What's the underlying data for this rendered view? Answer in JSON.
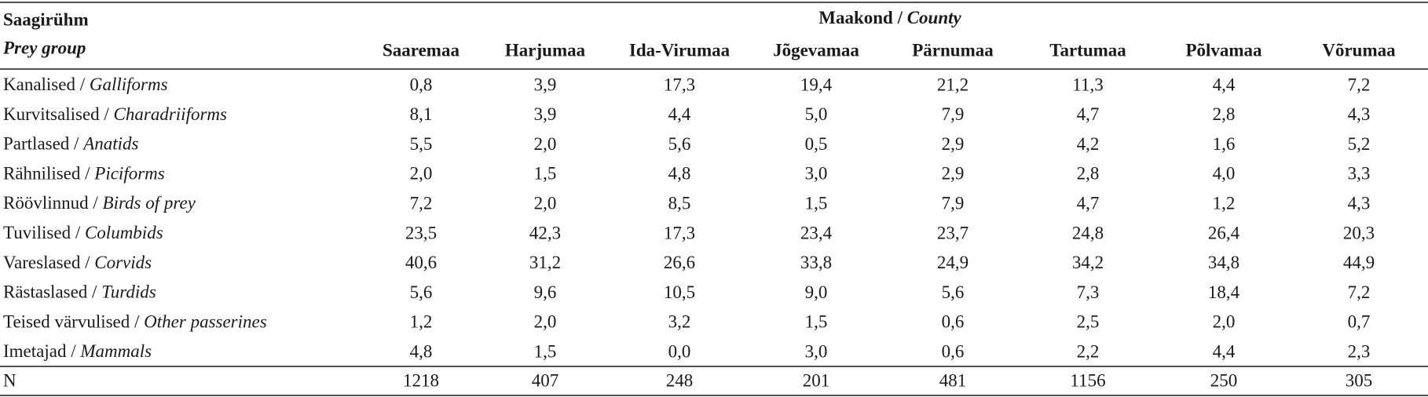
{
  "table": {
    "header": {
      "group": {
        "et": "Saagirühm",
        "en": "Prey group"
      },
      "county": {
        "et": "Maakond / ",
        "en": "County"
      },
      "columns": [
        "Saaremaa",
        "Harjumaa",
        "Ida-Virumaa",
        "Jõgevamaa",
        "Pärnumaa",
        "Tartumaa",
        "Põlvamaa",
        "Võrumaa"
      ]
    },
    "rows": [
      {
        "et": "Kanalised / ",
        "en": "Galliforms",
        "values": [
          "0,8",
          "3,9",
          "17,3",
          "19,4",
          "21,2",
          "11,3",
          "4,4",
          "7,2"
        ]
      },
      {
        "et": "Kurvitsalised / ",
        "en": "Charadriiforms",
        "values": [
          "8,1",
          "3,9",
          "4,4",
          "5,0",
          "7,9",
          "4,7",
          "2,8",
          "4,3"
        ]
      },
      {
        "et": "Partlased / ",
        "en": "Anatids",
        "values": [
          "5,5",
          "2,0",
          "5,6",
          "0,5",
          "2,9",
          "4,2",
          "1,6",
          "5,2"
        ]
      },
      {
        "et": "Rähnilised / ",
        "en": "Piciforms",
        "values": [
          "2,0",
          "1,5",
          "4,8",
          "3,0",
          "2,9",
          "2,8",
          "4,0",
          "3,3"
        ]
      },
      {
        "et": "Röövlinnud / ",
        "en": "Birds of prey",
        "values": [
          "7,2",
          "2,0",
          "8,5",
          "1,5",
          "7,9",
          "4,7",
          "1,2",
          "4,3"
        ]
      },
      {
        "et": "Tuvilised / ",
        "en": "Columbids",
        "values": [
          "23,5",
          "42,3",
          "17,3",
          "23,4",
          "23,7",
          "24,8",
          "26,4",
          "20,3"
        ]
      },
      {
        "et": "Vareslased / ",
        "en": "Corvids",
        "values": [
          "40,6",
          "31,2",
          "26,6",
          "33,8",
          "24,9",
          "34,2",
          "34,8",
          "44,9"
        ]
      },
      {
        "et": "Rästaslased / ",
        "en": "Turdids",
        "values": [
          "5,6",
          "9,6",
          "10,5",
          "9,0",
          "5,6",
          "7,3",
          "18,4",
          "7,2"
        ]
      },
      {
        "et": "Teised värvulised / ",
        "en": "Other passerines",
        "values": [
          "1,2",
          "2,0",
          "3,2",
          "1,5",
          "0,6",
          "2,5",
          "2,0",
          "0,7"
        ]
      },
      {
        "et": "Imetajad / ",
        "en": "Mammals",
        "values": [
          "4,8",
          "1,5",
          "0,0",
          "3,0",
          "0,6",
          "2,2",
          "4,4",
          "2,3"
        ]
      }
    ],
    "n_row": {
      "label": "N",
      "values": [
        "1218",
        "407",
        "248",
        "201",
        "481",
        "1156",
        "250",
        "305"
      ]
    }
  }
}
